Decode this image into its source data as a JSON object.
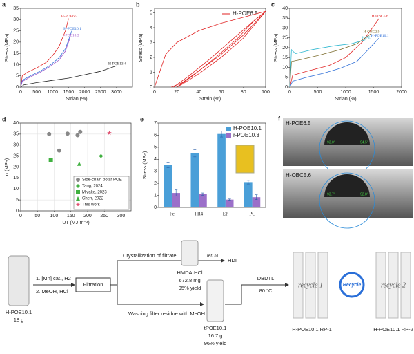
{
  "chart_data": [
    {
      "type": "line",
      "panel": "a",
      "xlabel": "Strian (%)",
      "ylabel": "Stress (MPa)",
      "xlim": [
        0,
        3500
      ],
      "xticks": [
        0,
        500,
        1000,
        1500,
        2000,
        2500,
        3000
      ],
      "ylim": [
        0,
        35
      ],
      "yticks": [
        0,
        5,
        10,
        15,
        20,
        25,
        30,
        35
      ],
      "series": [
        {
          "name": "H-POE6.5",
          "color": "#e02020",
          "x": [
            0,
            50,
            200,
            500,
            800,
            1000,
            1200,
            1400,
            1500
          ],
          "values": [
            0,
            5,
            6.5,
            8.5,
            11,
            14,
            18,
            25,
            30.5
          ]
        },
        {
          "name": "H-POE10.1",
          "color": "#3070d8",
          "x": [
            0,
            50,
            300,
            600,
            900,
            1200,
            1400,
            1600
          ],
          "values": [
            0,
            3,
            5,
            7,
            9.5,
            13,
            17,
            25
          ]
        },
        {
          "name": "r-POE10.3",
          "color": "#9b50c8",
          "x": [
            0,
            50,
            300,
            600,
            900,
            1200,
            1400,
            1550
          ],
          "values": [
            0,
            2.5,
            4.5,
            6.5,
            9,
            12,
            16,
            22
          ]
        },
        {
          "name": "H-POE13.4",
          "color": "#222222",
          "x": [
            0,
            100,
            500,
            1000,
            1500,
            2000,
            2500,
            3000
          ],
          "values": [
            0,
            1,
            2,
            3,
            4,
            5.5,
            7,
            9.5
          ]
        }
      ]
    },
    {
      "type": "line",
      "panel": "b",
      "xlabel": "Strain (%)",
      "ylabel": "Stress (MPa)",
      "legend": "upper right",
      "xlim": [
        0,
        100
      ],
      "xticks": [
        0,
        20,
        40,
        60,
        80,
        100
      ],
      "ylim": [
        0,
        5.3
      ],
      "yticks": [
        0,
        1,
        2,
        3,
        4,
        5
      ],
      "series": [
        {
          "name": "H-POE6.5",
          "color": "#e02020",
          "x": [
            0,
            10,
            20,
            40,
            60,
            80,
            100
          ],
          "values": [
            0,
            2.2,
            3,
            3.8,
            4.3,
            4.7,
            5.1
          ]
        },
        {
          "color": "#e02020",
          "x": [
            100,
            80,
            60,
            40,
            25,
            15
          ],
          "values": [
            5.1,
            3.5,
            2.2,
            1.1,
            0.3,
            0
          ]
        },
        {
          "color": "#e02020",
          "x": [
            17,
            30,
            50,
            70,
            90,
            100
          ],
          "values": [
            0,
            0.7,
            1.9,
            3.2,
            4.5,
            5.1
          ]
        },
        {
          "color": "#e02020",
          "x": [
            100,
            80,
            60,
            40,
            25,
            20
          ],
          "values": [
            5.1,
            3.3,
            2,
            0.9,
            0.2,
            0
          ]
        },
        {
          "color": "#e02020",
          "x": [
            20,
            35,
            55,
            75,
            90,
            100
          ],
          "values": [
            0,
            0.8,
            2,
            3.3,
            4.5,
            5.1
          ]
        }
      ]
    },
    {
      "type": "line",
      "panel": "c",
      "xlabel": "Strian (%)",
      "ylabel": "Stress (MPa)",
      "xlim": [
        0,
        2000
      ],
      "xticks": [
        0,
        500,
        1000,
        1500,
        2000
      ],
      "ylim": [
        0,
        40
      ],
      "yticks": [
        0,
        5,
        10,
        15,
        20,
        25,
        30,
        35,
        40
      ],
      "series": [
        {
          "name": "H-OBC5.6",
          "color": "#e02020",
          "x": [
            0,
            50,
            300,
            700,
            1000,
            1300,
            1600
          ],
          "values": [
            0,
            6,
            8,
            11,
            15,
            23,
            35
          ]
        },
        {
          "name": "H-OBC2.9",
          "color": "#7a6a2a",
          "x": [
            0,
            30,
            200,
            500,
            900,
            1200,
            1450
          ],
          "values": [
            0,
            13,
            14,
            16,
            19,
            22,
            27
          ]
        },
        {
          "name": "H-PE",
          "color": "#30b8d0",
          "x": [
            0,
            30,
            100,
            400,
            800,
            1100,
            1350
          ],
          "values": [
            0,
            19,
            17,
            19,
            21,
            22,
            24
          ]
        },
        {
          "name": "H-POE10.1",
          "color": "#3070d8",
          "x": [
            0,
            50,
            300,
            600,
            900,
            1200,
            1600
          ],
          "values": [
            0,
            3,
            5,
            7,
            9.5,
            13,
            25
          ]
        }
      ]
    },
    {
      "type": "scatter",
      "panel": "d",
      "xlabel": "UT (MJ·m⁻³)",
      "ylabel": "σ (MPa)",
      "grid": true,
      "legend": "lower right",
      "xlim": [
        0,
        330
      ],
      "xticks": [
        0,
        50,
        100,
        150,
        200,
        250,
        300
      ],
      "ylim": [
        0,
        40
      ],
      "yticks": [
        0,
        5,
        10,
        15,
        20,
        25,
        30,
        35,
        40
      ],
      "series": [
        {
          "name": "Side-chain polar POE",
          "color": "#888888",
          "marker": "circle",
          "x": [
            85,
            115,
            140,
            170,
            178
          ],
          "values": [
            35,
            27.5,
            35.2,
            34.5,
            36
          ]
        },
        {
          "name": "Tang, 2024",
          "color": "#40b040",
          "marker": "diamond",
          "x": [
            240
          ],
          "values": [
            25
          ]
        },
        {
          "name": "Miyake, 2023",
          "color": "#40b040",
          "marker": "square",
          "x": [
            90
          ],
          "values": [
            23
          ]
        },
        {
          "name": "Chen, 2022",
          "color": "#40b040",
          "marker": "triangle",
          "x": [
            175
          ],
          "values": [
            21.5
          ]
        },
        {
          "name": "This work",
          "color": "#e05070",
          "marker": "star",
          "x": [
            265
          ],
          "values": [
            35.5
          ]
        }
      ]
    },
    {
      "type": "bar",
      "panel": "e",
      "ylabel": "Stress (MPa)",
      "legend": "upper right",
      "categories": [
        "Fe",
        "FR4",
        "EP",
        "PC"
      ],
      "ylim": [
        0,
        7
      ],
      "yticks": [
        0,
        1,
        2,
        3,
        4,
        5,
        6,
        7
      ],
      "series": [
        {
          "name": "H-POE10.1",
          "color": "#4a9fd8",
          "values": [
            3.5,
            4.5,
            6.1,
            2.1
          ],
          "errors": [
            0.2,
            0.3,
            0.25,
            0.15
          ]
        },
        {
          "name": "r-POE10.3",
          "color": "#9b6fc9",
          "values": [
            1.2,
            1.1,
            0.65,
            0.85
          ],
          "errors": [
            0.25,
            0.1,
            0.05,
            0.2
          ]
        }
      ]
    }
  ],
  "contact_angle": {
    "panel": "f",
    "samples": [
      {
        "label": "H-POE6.5",
        "angles": [
          "93.0°",
          "94.5°"
        ]
      },
      {
        "label": "H-OBC5.6",
        "angles": [
          "93.7°",
          "92.8°"
        ]
      }
    ]
  },
  "scheme": {
    "start": {
      "name": "H-POE10.1",
      "mass": "18 g"
    },
    "step1": "1. [Mn] cat., H2",
    "step2": "2. MeOH, HCl",
    "filtration": "Filtration",
    "upper": {
      "step": "Crystallization of filtrate",
      "product": "HMDA·HCl",
      "mass": "672.8 mg",
      "yield": "95% yield",
      "ref": "ref. 51",
      "target": "HDI"
    },
    "lower": {
      "step": "Washing filter residue with MeOH",
      "product": "tPOE10.1",
      "mass": "16.7 g",
      "yield": "96% yield"
    },
    "catalyst": "DBDTL",
    "temperature": "80 °C",
    "recycle": {
      "first": "recycle 1",
      "center": "Recycle",
      "second": "recycle 2",
      "label1": "H-POE10.1 RP-1",
      "label2": "H-POE10.1 RP-2"
    }
  }
}
